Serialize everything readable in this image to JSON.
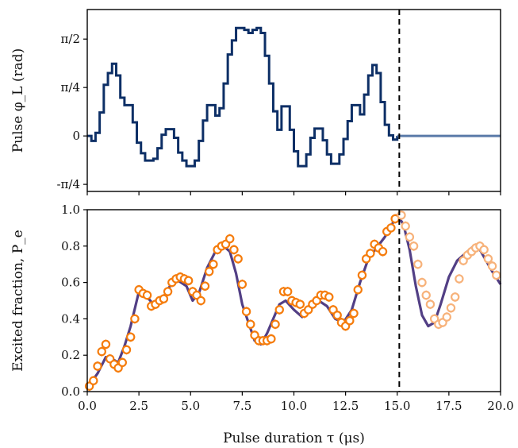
{
  "chart_data": [
    {
      "type": "line",
      "ylabel": "Pulse φ_L (rad)",
      "xlim": [
        0,
        20
      ],
      "ylim": [
        -0.9,
        2.05
      ],
      "y_tick_labels": [
        {
          "value": -0.7854,
          "label": "-π/4"
        },
        {
          "value": 0,
          "label": "0"
        },
        {
          "value": 0.7854,
          "label": "π/4"
        },
        {
          "value": 1.5708,
          "label": "π/2"
        }
      ],
      "x_ticks": [
        0,
        2.5,
        5,
        7.5,
        10,
        12.5,
        15,
        17.5,
        20
      ],
      "series": [
        {
          "color": "#0d2f66",
          "step": true,
          "x": [
            0.0,
            0.2,
            0.4,
            0.6,
            0.8,
            1.0,
            1.2,
            1.4,
            1.6,
            1.8,
            2.0,
            2.2,
            2.4,
            2.6,
            2.8,
            3.0,
            3.2,
            3.4,
            3.6,
            3.8,
            4.0,
            4.2,
            4.4,
            4.6,
            4.8,
            5.0,
            5.2,
            5.4,
            5.6,
            5.8,
            6.0,
            6.2,
            6.4,
            6.6,
            6.8,
            7.0,
            7.2,
            7.4,
            7.6,
            7.8,
            8.0,
            8.2,
            8.4,
            8.6,
            8.8,
            9.0,
            9.2,
            9.4,
            9.6,
            9.8,
            10.0,
            10.2,
            10.4,
            10.6,
            10.8,
            11.0,
            11.2,
            11.4,
            11.6,
            11.8,
            12.0,
            12.2,
            12.4,
            12.6,
            12.8,
            13.0,
            13.2,
            13.4,
            13.6,
            13.8,
            14.0,
            14.2,
            14.4,
            14.6,
            14.8,
            15.0
          ],
          "y": [
            0.0,
            -0.08,
            0.05,
            0.38,
            0.83,
            1.02,
            1.17,
            0.98,
            0.62,
            0.5,
            0.5,
            0.22,
            -0.11,
            -0.28,
            -0.4,
            -0.4,
            -0.37,
            -0.2,
            0.02,
            0.11,
            0.11,
            -0.03,
            -0.27,
            -0.4,
            -0.49,
            -0.49,
            -0.4,
            -0.08,
            0.25,
            0.5,
            0.5,
            0.33,
            0.45,
            0.85,
            1.32,
            1.55,
            1.75,
            1.75,
            1.72,
            1.67,
            1.72,
            1.75,
            1.67,
            1.3,
            0.85,
            0.4,
            0.1,
            0.48,
            0.48,
            0.1,
            -0.25,
            -0.49,
            -0.49,
            -0.3,
            -0.03,
            0.12,
            0.12,
            -0.07,
            -0.3,
            -0.45,
            -0.45,
            -0.3,
            -0.05,
            0.24,
            0.5,
            0.5,
            0.35,
            0.67,
            0.98,
            1.15,
            1.02,
            0.55,
            0.18,
            0.01,
            -0.06,
            0.0
          ]
        },
        {
          "color": "#5a7aa8",
          "x": [
            15.0,
            20.0
          ],
          "y": [
            0.0,
            0.0
          ]
        }
      ],
      "vline_x": 15.1
    },
    {
      "type": "scatter",
      "ylabel": "Excited fraction, P_e",
      "xlabel": "Pulse duration τ (μs)",
      "xlim": [
        0,
        20
      ],
      "ylim": [
        0,
        1
      ],
      "y_tick_labels": [
        {
          "value": 0,
          "label": "0.0"
        },
        {
          "value": 0.2,
          "label": "0.2"
        },
        {
          "value": 0.4,
          "label": "0.4"
        },
        {
          "value": 0.6,
          "label": "0.6"
        },
        {
          "value": 0.8,
          "label": "0.8"
        },
        {
          "value": 1.0,
          "label": "1.0"
        }
      ],
      "x_tick_labels": [
        {
          "value": 0,
          "label": "0.0"
        },
        {
          "value": 2.5,
          "label": "2.5"
        },
        {
          "value": 5,
          "label": "5.0"
        },
        {
          "value": 7.5,
          "label": "7.5"
        },
        {
          "value": 10,
          "label": "10.0"
        },
        {
          "value": 12.5,
          "label": "12.5"
        },
        {
          "value": 15,
          "label": "15.0"
        },
        {
          "value": 17.5,
          "label": "17.5"
        },
        {
          "value": 20,
          "label": "20.0"
        }
      ],
      "theory_color": "#3f2a78",
      "theory": {
        "x": [
          0.0,
          0.5,
          0.9,
          1.2,
          1.5,
          1.8,
          2.1,
          2.5,
          2.9,
          3.2,
          3.6,
          4.0,
          4.4,
          4.8,
          5.1,
          5.4,
          5.8,
          6.2,
          6.6,
          6.9,
          7.2,
          7.5,
          7.8,
          8.1,
          8.4,
          8.7,
          9.0,
          9.3,
          9.6,
          10.0,
          10.4,
          10.8,
          11.2,
          11.6,
          12.0,
          12.4,
          12.8,
          13.2,
          13.6,
          14.0,
          14.4,
          14.8,
          15.0,
          15.3,
          15.6,
          15.9,
          16.2,
          16.5,
          16.8,
          17.1,
          17.5,
          17.9,
          18.3,
          18.7,
          19.0,
          19.3,
          19.6,
          20.0
        ],
        "y": [
          0.02,
          0.1,
          0.19,
          0.18,
          0.16,
          0.25,
          0.36,
          0.55,
          0.52,
          0.48,
          0.5,
          0.58,
          0.61,
          0.58,
          0.5,
          0.54,
          0.68,
          0.77,
          0.8,
          0.77,
          0.65,
          0.48,
          0.38,
          0.28,
          0.26,
          0.32,
          0.4,
          0.48,
          0.5,
          0.45,
          0.41,
          0.45,
          0.5,
          0.47,
          0.4,
          0.38,
          0.45,
          0.6,
          0.73,
          0.79,
          0.85,
          0.93,
          0.97,
          0.92,
          0.78,
          0.58,
          0.42,
          0.36,
          0.38,
          0.48,
          0.63,
          0.72,
          0.76,
          0.8,
          0.78,
          0.72,
          0.66,
          0.59
        ]
      },
      "series": [
        {
          "color": "#f57c0c",
          "x": [
            0.1,
            0.3,
            0.5,
            0.7,
            0.9,
            1.1,
            1.3,
            1.5,
            1.7,
            1.9,
            2.1,
            2.3,
            2.5,
            2.7,
            2.9,
            3.1,
            3.3,
            3.5,
            3.7,
            3.9,
            4.1,
            4.3,
            4.5,
            4.7,
            4.9,
            5.1,
            5.3,
            5.5,
            5.7,
            5.9,
            6.1,
            6.3,
            6.5,
            6.7,
            6.9,
            7.1,
            7.3,
            7.5,
            7.7,
            7.9,
            8.1,
            8.3,
            8.5,
            8.7,
            8.9,
            9.1,
            9.3,
            9.5,
            9.7,
            9.9,
            10.1,
            10.3,
            10.5,
            10.7,
            10.9,
            11.1,
            11.3,
            11.5,
            11.7,
            11.9,
            12.1,
            12.3,
            12.5,
            12.7,
            12.9,
            13.1,
            13.3,
            13.5,
            13.7,
            13.9,
            14.1,
            14.3,
            14.5,
            14.7,
            14.9
          ],
          "y": [
            0.03,
            0.06,
            0.14,
            0.22,
            0.26,
            0.18,
            0.15,
            0.13,
            0.16,
            0.23,
            0.3,
            0.4,
            0.56,
            0.54,
            0.53,
            0.47,
            0.48,
            0.5,
            0.51,
            0.55,
            0.6,
            0.62,
            0.63,
            0.62,
            0.61,
            0.55,
            0.53,
            0.5,
            0.58,
            0.66,
            0.7,
            0.78,
            0.8,
            0.81,
            0.84,
            0.78,
            0.73,
            0.59,
            0.44,
            0.37,
            0.31,
            0.28,
            0.28,
            0.28,
            0.29,
            0.37,
            0.45,
            0.55,
            0.55,
            0.5,
            0.49,
            0.48,
            0.43,
            0.45,
            0.48,
            0.5,
            0.53,
            0.53,
            0.52,
            0.45,
            0.42,
            0.38,
            0.36,
            0.39,
            0.43,
            0.56,
            0.64,
            0.73,
            0.76,
            0.81,
            0.79,
            0.77,
            0.88,
            0.9,
            0.95
          ]
        },
        {
          "color": "#f7b27a",
          "x": [
            15.2,
            15.4,
            15.6,
            15.8,
            16.0,
            16.2,
            16.4,
            16.6,
            16.8,
            17.0,
            17.2,
            17.4,
            17.6,
            17.8,
            18.0,
            18.2,
            18.4,
            18.6,
            18.8,
            19.0,
            19.2,
            19.4,
            19.6,
            19.8
          ],
          "y": [
            0.97,
            0.91,
            0.85,
            0.8,
            0.7,
            0.6,
            0.53,
            0.48,
            0.4,
            0.37,
            0.38,
            0.41,
            0.46,
            0.52,
            0.62,
            0.72,
            0.75,
            0.77,
            0.79,
            0.8,
            0.78,
            0.73,
            0.69,
            0.64
          ]
        }
      ],
      "vline_x": 15.1
    }
  ]
}
